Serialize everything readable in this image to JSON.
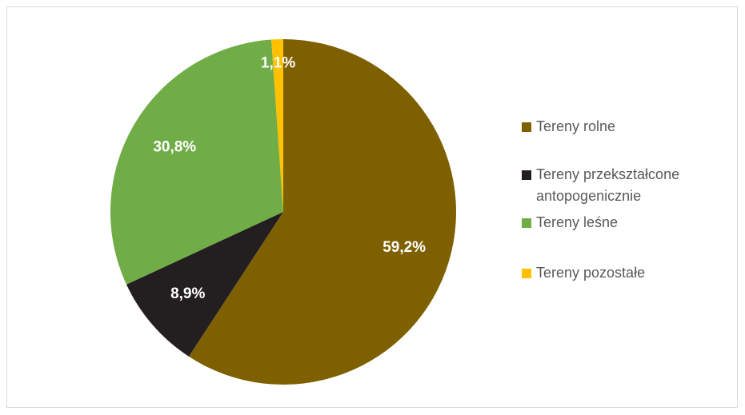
{
  "chart_data": {
    "type": "pie",
    "categories": [
      "Tereny rolne",
      "Tereny przekształcone antopogenicznie",
      "Tereny leśne",
      "Tereny pozostałe"
    ],
    "values": [
      59.2,
      8.9,
      30.8,
      1.1
    ],
    "value_labels": [
      "59,2%",
      "8,9%",
      "30,8%",
      "1,1%"
    ],
    "colors": [
      "#7f6000",
      "#231f20",
      "#70ad47",
      "#ffc000"
    ],
    "legend": "right"
  }
}
